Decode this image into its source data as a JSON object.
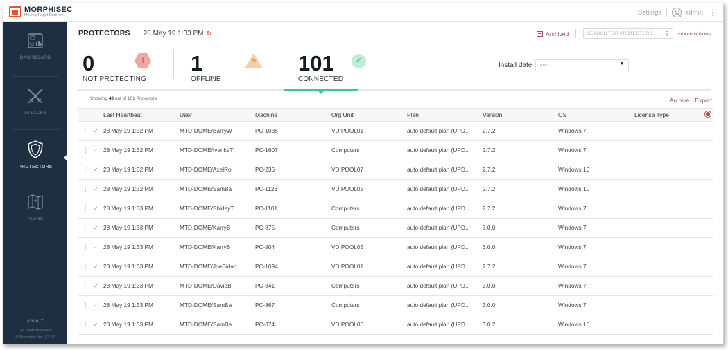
{
  "app": {
    "logo_name": "MORPHISEC",
    "logo_tagline": "Moving Target Defense",
    "settings_label": "Settings",
    "user_label": "admin"
  },
  "sidebar": {
    "items": [
      {
        "label": "DASHBOARD",
        "icon": "dashboard-icon"
      },
      {
        "label": "ATTACKS",
        "icon": "swords-icon"
      },
      {
        "label": "PROTECTORS",
        "icon": "shield-icon",
        "active": true
      },
      {
        "label": "PLANS",
        "icon": "map-icon"
      }
    ],
    "about_label": "ABOUT",
    "footer_line1": "All rights reserved",
    "footer_line2": "© Morphisec Inc. | 3.3.0"
  },
  "header": {
    "title": "PROTECTORS",
    "timestamp": "28 May 19 1:33 PM",
    "refresh_icon": "refresh-icon",
    "archived_label": "Archived",
    "search_placeholder": "SEARCH FOR PROTECTORS",
    "more_options_label": "+more options"
  },
  "stats": {
    "not_protecting": {
      "value": "0",
      "label": "NOT PROTECTING",
      "icon_glyph": "!",
      "color": "#f2a6a3"
    },
    "offline": {
      "value": "1",
      "label": "OFFLINE",
      "icon_glyph": "?",
      "color": "#f7cfa4"
    },
    "connected": {
      "value": "101",
      "label": "CONNECTED",
      "icon_glyph": "✓",
      "color": "#bfeed8"
    }
  },
  "filters": {
    "install_date_label": "Install date",
    "install_date_value": "Any"
  },
  "table": {
    "showing_prefix": "Showing ",
    "showing_count": "40",
    "showing_suffix": " out of 101 Protectors",
    "archive_label": "Archive",
    "export_label": "Export",
    "columns": [
      "Last Heartbeat",
      "User",
      "Machine",
      "Org Unit",
      "Plan",
      "Version",
      "OS",
      "License Type"
    ],
    "rows": [
      {
        "heartbeat": "28 May 19 1:32 PM",
        "user": "MTD-DOME/BarryW",
        "machine": "PC-1038",
        "org": "VDIPOOL01",
        "plan": "auto default plan (UPD...",
        "version": "2.7.2",
        "os": "Windows 7",
        "license": ""
      },
      {
        "heartbeat": "28 May 19 1:32 PM",
        "user": "MTD-DOME/IvankaT",
        "machine": "PC-1607",
        "org": "Computers",
        "plan": "auto default plan (UPD...",
        "version": "2.7.2",
        "os": "Windows 7",
        "license": ""
      },
      {
        "heartbeat": "28 May 19 1:32 PM",
        "user": "MTD-DOME/AxelRo",
        "machine": "PC-236",
        "org": "VDIPOOL07",
        "plan": "auto default plan (UPD...",
        "version": "2.7.2",
        "os": "Windows 10",
        "license": ""
      },
      {
        "heartbeat": "28 May 19 1:32 PM",
        "user": "MTD-DOME/SamBa",
        "machine": "PC-1128",
        "org": "VDIPOOL05",
        "plan": "auto default plan (UPD...",
        "version": "2.7.2",
        "os": "Windows 10",
        "license": ""
      },
      {
        "heartbeat": "28 May 19 1:33 PM",
        "user": "MTD-DOME/ShirleyT",
        "machine": "PC-1101",
        "org": "Computers",
        "plan": "auto default plan (UPD...",
        "version": "2.7.2",
        "os": "Windows 7",
        "license": ""
      },
      {
        "heartbeat": "28 May 19 1:33 PM",
        "user": "MTD-DOME/KarryB",
        "machine": "PC-875",
        "org": "Computers",
        "plan": "auto default plan (UPD...",
        "version": "3.0.0",
        "os": "Windows 7",
        "license": ""
      },
      {
        "heartbeat": "28 May 19 1:33 PM",
        "user": "MTD-DOME/KarryB",
        "machine": "PC-904",
        "org": "VDIPOOL05",
        "plan": "auto default plan (UPD...",
        "version": "3.0.0",
        "os": "Windows 7",
        "license": ""
      },
      {
        "heartbeat": "28 May 19 1:33 PM",
        "user": "MTD-DOME/JoeBidan",
        "machine": "PC-1094",
        "org": "VDIPOOL01",
        "plan": "auto default plan (UPD...",
        "version": "2.7.2",
        "os": "Windows 7",
        "license": ""
      },
      {
        "heartbeat": "28 May 19 1:33 PM",
        "user": "MTD-DOME/DavidB",
        "machine": "PC-841",
        "org": "Computers",
        "plan": "auto default plan (UPD...",
        "version": "3.0.0",
        "os": "Windows 7",
        "license": ""
      },
      {
        "heartbeat": "28 May 19 1:33 PM",
        "user": "MTD-DOME/SamBa",
        "machine": "PC-867",
        "org": "Computers",
        "plan": "auto default plan (UPD...",
        "version": "3.0.0",
        "os": "Windows 7",
        "license": ""
      },
      {
        "heartbeat": "28 May 19 1:33 PM",
        "user": "MTD-DOME/SamBa",
        "machine": "PC-374",
        "org": "VDIPOOL06",
        "plan": "auto default plan (UPD...",
        "version": "3.0.2",
        "os": "Windows 10",
        "license": ""
      }
    ]
  },
  "colors": {
    "sidebar_bg": "#1d2f40",
    "accent": "#a54e4e",
    "brand_orange": "#e2562a",
    "connected_green": "#3cc98f"
  }
}
